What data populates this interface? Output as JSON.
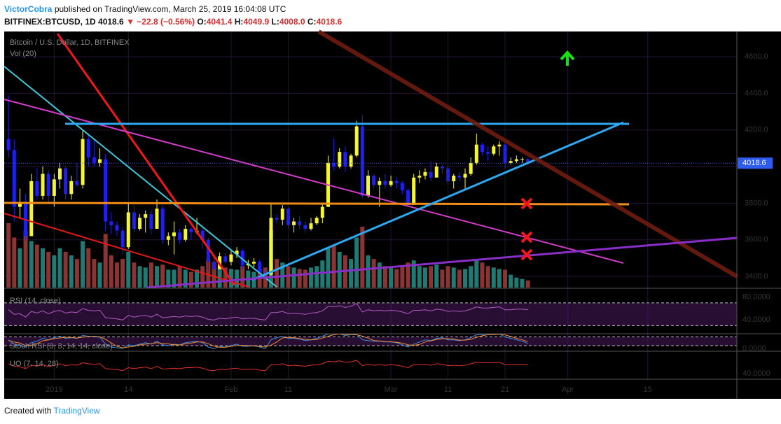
{
  "header": {
    "author": "VictorCobra",
    "published": "published on TradingView.com, March 25, 2019 16:04:08 UTC",
    "symbol": "BITFINEX:BTCUSD, 1D",
    "last": "4018.6",
    "change_arrow": "▼",
    "change": "−22.8 (−0.56%)",
    "ohlc": [
      {
        "label": "O:",
        "value": "4041.4"
      },
      {
        "label": "H:",
        "value": "4049.9"
      },
      {
        "label": "L:",
        "value": "4008.0"
      },
      {
        "label": "C:",
        "value": "4018.6"
      }
    ]
  },
  "chart_data": {
    "type": "candlestick",
    "title": "Bitcoin / U.S. Dollar, 1D, BITFINEX",
    "up_color": "#f5f535",
    "down_color": "#1f1ff2",
    "grid": true,
    "x": [
      "2018-12-24",
      "2018-12-25",
      "2018-12-26",
      "2018-12-27",
      "2018-12-28",
      "2018-12-29",
      "2018-12-30",
      "2018-12-31",
      "2019-01-01",
      "2019-01-02",
      "2019-01-03",
      "2019-01-04",
      "2019-01-05",
      "2019-01-06",
      "2019-01-07",
      "2019-01-08",
      "2019-01-09",
      "2019-01-10",
      "2019-01-11",
      "2019-01-12",
      "2019-01-13",
      "2019-01-14",
      "2019-01-15",
      "2019-01-16",
      "2019-01-17",
      "2019-01-18",
      "2019-01-19",
      "2019-01-20",
      "2019-01-21",
      "2019-01-22",
      "2019-01-23",
      "2019-01-24",
      "2019-01-25",
      "2019-01-26",
      "2019-01-27",
      "2019-01-28",
      "2019-01-29",
      "2019-01-30",
      "2019-01-31",
      "2019-02-01",
      "2019-02-02",
      "2019-02-03",
      "2019-02-04",
      "2019-02-05",
      "2019-02-06",
      "2019-02-07",
      "2019-02-08",
      "2019-02-09",
      "2019-02-10",
      "2019-02-11",
      "2019-02-12",
      "2019-02-13",
      "2019-02-14",
      "2019-02-15",
      "2019-02-16",
      "2019-02-17",
      "2019-02-18",
      "2019-02-19",
      "2019-02-20",
      "2019-02-21",
      "2019-02-22",
      "2019-02-23",
      "2019-02-24",
      "2019-02-25",
      "2019-02-26",
      "2019-02-27",
      "2019-02-28",
      "2019-03-01",
      "2019-03-02",
      "2019-03-03",
      "2019-03-04",
      "2019-03-05",
      "2019-03-06",
      "2019-03-07",
      "2019-03-08",
      "2019-03-09",
      "2019-03-10",
      "2019-03-11",
      "2019-03-12",
      "2019-03-13",
      "2019-03-14",
      "2019-03-15",
      "2019-03-16",
      "2019-03-17",
      "2019-03-18",
      "2019-03-19",
      "2019-03-20",
      "2019-03-21",
      "2019-03-22",
      "2019-03-23",
      "2019-03-24",
      "2019-03-25"
    ],
    "open": [
      4150,
      4090,
      3780,
      3800,
      3620,
      3920,
      3840,
      3960,
      3840,
      3930,
      3990,
      3850,
      3920,
      3900,
      4150,
      4050,
      4020,
      4040,
      3700,
      3680,
      3650,
      3560,
      3750,
      3660,
      3720,
      3740,
      3660,
      3770,
      3600,
      3620,
      3640,
      3600,
      3660,
      3640,
      3650,
      3600,
      3480,
      3440,
      3510,
      3480,
      3520,
      3540,
      3460,
      3470,
      3480,
      3420,
      3410,
      3720,
      3710,
      3770,
      3680,
      3700,
      3680,
      3660,
      3690,
      3720,
      3780,
      4020,
      4000,
      4080,
      4000,
      4060,
      4220,
      3840,
      3950,
      3900,
      3920,
      3900,
      3920,
      3910,
      3870,
      3790,
      3940,
      3950,
      3970,
      3940,
      4000,
      3990,
      3920,
      3950,
      3940,
      3960,
      4020,
      4120,
      4080,
      4070,
      4110,
      4120,
      4020,
      4030,
      4040,
      4041.4
    ],
    "high": [
      4390,
      4150,
      3880,
      3850,
      3960,
      3990,
      4000,
      3980,
      3960,
      4020,
      4000,
      3950,
      4020,
      4200,
      4180,
      4150,
      4100,
      4070,
      3750,
      3700,
      3670,
      3800,
      3790,
      3740,
      3760,
      3760,
      3820,
      3790,
      3640,
      3700,
      3660,
      3680,
      3670,
      3720,
      3670,
      3610,
      3500,
      3530,
      3530,
      3540,
      3560,
      3550,
      3490,
      3500,
      3490,
      3440,
      3800,
      3740,
      3790,
      3780,
      3720,
      3730,
      3700,
      3720,
      3730,
      3800,
      4060,
      4150,
      4100,
      4110,
      4070,
      4250,
      4280,
      3980,
      3960,
      3940,
      3960,
      3950,
      3940,
      3920,
      3880,
      3960,
      3980,
      3990,
      4030,
      4020,
      4010,
      4010,
      3960,
      3970,
      3990,
      4050,
      4180,
      4130,
      4110,
      4120,
      4140,
      4130,
      4050,
      4060,
      4050,
      4049.9
    ],
    "low": [
      4050,
      3700,
      3720,
      3600,
      3620,
      3820,
      3820,
      3800,
      3780,
      3880,
      3820,
      3820,
      3890,
      3880,
      4000,
      4000,
      4000,
      3650,
      3630,
      3620,
      3520,
      3550,
      3640,
      3650,
      3640,
      3630,
      3660,
      3580,
      3570,
      3520,
      3580,
      3590,
      3600,
      3630,
      3550,
      3430,
      3410,
      3440,
      3470,
      3460,
      3500,
      3440,
      3440,
      3450,
      3400,
      3400,
      3400,
      3690,
      3680,
      3660,
      3640,
      3660,
      3640,
      3650,
      3680,
      3690,
      3780,
      3980,
      3990,
      3970,
      3990,
      4050,
      3830,
      3830,
      3880,
      3780,
      3880,
      3890,
      3880,
      3850,
      3780,
      3790,
      3910,
      3930,
      3920,
      3940,
      3960,
      3900,
      3880,
      3920,
      3880,
      3950,
      4010,
      4060,
      4030,
      4060,
      4060,
      3990,
      4010,
      4020,
      4020,
      4008.0
    ],
    "close": [
      4090,
      3780,
      3800,
      3620,
      3920,
      3840,
      3960,
      3840,
      3930,
      3990,
      3850,
      3920,
      3900,
      4150,
      4050,
      4020,
      4040,
      3700,
      3680,
      3650,
      3560,
      3750,
      3660,
      3720,
      3740,
      3660,
      3770,
      3600,
      3620,
      3640,
      3600,
      3660,
      3640,
      3650,
      3600,
      3480,
      3440,
      3510,
      3480,
      3520,
      3540,
      3460,
      3470,
      3480,
      3420,
      3410,
      3720,
      3710,
      3770,
      3680,
      3700,
      3680,
      3660,
      3690,
      3720,
      3780,
      4020,
      4000,
      4080,
      4000,
      4060,
      4220,
      3840,
      3950,
      3900,
      3920,
      3900,
      3920,
      3910,
      3870,
      3790,
      3940,
      3950,
      3970,
      3940,
      4000,
      3990,
      3920,
      3950,
      3940,
      3960,
      4020,
      4120,
      4080,
      4070,
      4110,
      4120,
      4020,
      4030,
      4040,
      4041.4,
      4018.6
    ],
    "xlim": [
      "2018-12-23",
      "2019-04-30"
    ],
    "xticks": [
      {
        "value": "2019-01-01",
        "label": "2019"
      },
      {
        "value": "2019-01-14",
        "label": "14"
      },
      {
        "value": "2019-02-01",
        "label": "Feb"
      },
      {
        "value": "2019-02-11",
        "label": "11"
      },
      {
        "value": "2019-03-01",
        "label": "Mar"
      },
      {
        "value": "2019-03-11",
        "label": "11"
      },
      {
        "value": "2019-03-21",
        "label": "21"
      },
      {
        "value": "2019-04-01",
        "label": "Apr"
      },
      {
        "value": "2019-04-15",
        "label": "15"
      }
    ],
    "ylim": [
      3339,
      4738
    ],
    "yticks": [
      {
        "value": 3400,
        "label": "3400.0"
      },
      {
        "value": 3600,
        "label": "3600.0"
      },
      {
        "value": 3800,
        "label": "3800.0"
      },
      {
        "value": 4000,
        "label": "4000.0"
      },
      {
        "value": 4200,
        "label": "4200.0"
      },
      {
        "value": 4400,
        "label": "4400.0"
      },
      {
        "value": 4600,
        "label": "4600.0"
      }
    ],
    "volume": {
      "name": "Vol (20)",
      "up_color": "#1e7a72",
      "down_color": "#8a3434",
      "values": [
        90,
        70,
        55,
        80,
        65,
        60,
        55,
        50,
        45,
        55,
        50,
        45,
        40,
        65,
        55,
        40,
        35,
        75,
        45,
        35,
        40,
        50,
        35,
        30,
        28,
        35,
        30,
        32,
        25,
        25,
        30,
        25,
        22,
        25,
        30,
        40,
        35,
        30,
        28,
        26,
        25,
        30,
        24,
        22,
        26,
        28,
        80,
        40,
        35,
        30,
        28,
        26,
        25,
        28,
        30,
        38,
        55,
        60,
        50,
        45,
        40,
        70,
        85,
        45,
        40,
        35,
        30,
        28,
        26,
        30,
        35,
        38,
        30,
        28,
        30,
        32,
        25,
        30,
        28,
        25,
        26,
        30,
        40,
        35,
        30,
        28,
        26,
        25,
        18,
        14,
        12,
        10
      ]
    },
    "indicators": [
      {
        "name": "RSI (14, close)",
        "ylim": [
          17,
          94.5
        ],
        "yticks": [
          {
            "value": 80,
            "label": "80.0000"
          },
          {
            "value": 40,
            "label": "40.0000"
          }
        ],
        "bands": [
          30,
          70
        ],
        "series": [
          {
            "color": "#b05cc0",
            "values": [
              58,
              50,
              51,
              45,
              55,
              52,
              56,
              51,
              55,
              57,
              52,
              54,
              53,
              60,
              57,
              56,
              57,
              44,
              43,
              42,
              40,
              48,
              45,
              47,
              48,
              45,
              50,
              44,
              45,
              46,
              45,
              47,
              46,
              47,
              45,
              41,
              40,
              43,
              42,
              44,
              45,
              42,
              43,
              43,
              41,
              40,
              53,
              53,
              55,
              51,
              52,
              51,
              50,
              52,
              53,
              56,
              64,
              63,
              65,
              62,
              64,
              69,
              54,
              58,
              56,
              57,
              56,
              57,
              56,
              54,
              51,
              57,
              57,
              58,
              56,
              59,
              58,
              55,
              56,
              55,
              56,
              59,
              63,
              61,
              61,
              62,
              63,
              58,
              58,
              59,
              59,
              58
            ]
          }
        ]
      },
      {
        "name": "Stoch RSI (3, 3, 14, 14, close)",
        "ylim": [
          -14,
          97
        ],
        "yticks": [
          {
            "value": 0,
            "label": "0.0000"
          }
        ],
        "bands": [
          20,
          80
        ],
        "series": [
          {
            "color": "#3b8fe0",
            "values": [
              60,
              30,
              20,
              10,
              40,
              50,
              70,
              60,
              75,
              85,
              70,
              75,
              70,
              90,
              85,
              80,
              78,
              30,
              10,
              5,
              0,
              25,
              20,
              30,
              40,
              30,
              50,
              25,
              20,
              30,
              25,
              40,
              45,
              50,
              40,
              10,
              0,
              15,
              10,
              20,
              30,
              15,
              15,
              20,
              10,
              0,
              60,
              75,
              85,
              70,
              70,
              65,
              55,
              60,
              70,
              85,
              100,
              100,
              100,
              90,
              95,
              100,
              60,
              55,
              50,
              50,
              45,
              45,
              40,
              25,
              10,
              30,
              45,
              60,
              55,
              70,
              75,
              60,
              60,
              55,
              60,
              75,
              95,
              95,
              95,
              98,
              100,
              80,
              70,
              60,
              50,
              35
            ]
          },
          {
            "color": "#f08a24",
            "values": [
              55,
              45,
              37,
              20,
              23,
              33,
              53,
              60,
              68,
              73,
              77,
              77,
              72,
              78,
              82,
              85,
              81,
              63,
              39,
              15,
              5,
              10,
              15,
              25,
              30,
              33,
              40,
              35,
              32,
              25,
              25,
              32,
              37,
              45,
              45,
              33,
              17,
              8,
              8,
              15,
              20,
              22,
              20,
              17,
              15,
              10,
              23,
              45,
              73,
              77,
              75,
              68,
              63,
              60,
              62,
              72,
              85,
              95,
              100,
              97,
              95,
              95,
              85,
              72,
              55,
              52,
              48,
              47,
              43,
              37,
              25,
              22,
              28,
              45,
              53,
              62,
              67,
              68,
              65,
              58,
              58,
              63,
              77,
              88,
              95,
              96,
              98,
              93,
              83,
              70,
              60,
              48
            ]
          }
        ]
      },
      {
        "name": "UO (7, 14, 28)",
        "ylim": [
          30,
          84
        ],
        "yticks": [
          {
            "value": 40,
            "label": "40.0000"
          }
        ],
        "series": [
          {
            "color": "#e0302a",
            "values": [
              60,
              55,
              54,
              50,
              57,
              55,
              58,
              54,
              57,
              60,
              56,
              58,
              57,
              62,
              60,
              59,
              60,
              50,
              49,
              48,
              46,
              52,
              50,
              52,
              53,
              50,
              55,
              49,
              50,
              51,
              50,
              52,
              52,
              53,
              51,
              47,
              46,
              49,
              48,
              50,
              51,
              48,
              49,
              49,
              47,
              46,
              58,
              58,
              60,
              56,
              57,
              56,
              55,
              57,
              58,
              60,
              65,
              64,
              66,
              63,
              64,
              67,
              56,
              59,
              57,
              58,
              57,
              58,
              57,
              55,
              52,
              58,
              58,
              59,
              57,
              60,
              59,
              56,
              57,
              56,
              57,
              60,
              63,
              62,
              62,
              62,
              63,
              58,
              58,
              59,
              59,
              58
            ]
          }
        ]
      }
    ]
  },
  "footer": {
    "created": "Created with",
    "brand": "TradingView"
  }
}
